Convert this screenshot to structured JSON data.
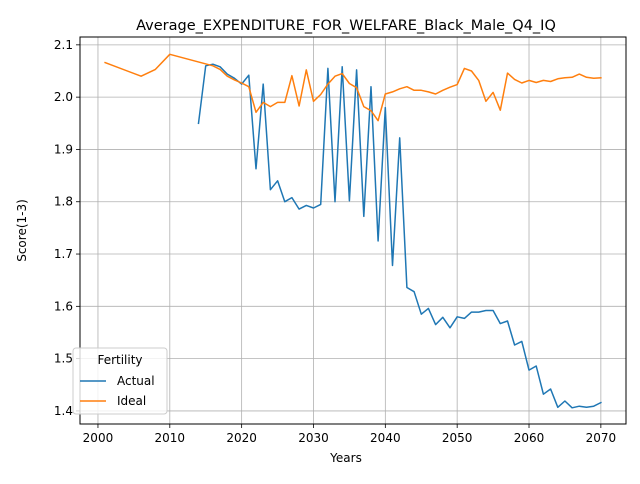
{
  "chart_data": {
    "type": "line",
    "title": "Average_EXPENDITURE_FOR_WELFARE_Black_Male_Q4_IQ",
    "xlabel": "Years",
    "ylabel": "Score(1-3)",
    "xlim": [
      1997.5,
      2073.5
    ],
    "ylim": [
      1.375,
      2.115
    ],
    "xticks": [
      2000,
      2010,
      2020,
      2030,
      2040,
      2050,
      2060,
      2070
    ],
    "yticks": [
      1.4,
      1.5,
      1.6,
      1.7,
      1.8,
      1.9,
      2.0,
      2.1
    ],
    "xtick_labels": [
      "2000",
      "2010",
      "2020",
      "2030",
      "2040",
      "2050",
      "2060",
      "2070"
    ],
    "ytick_labels": [
      "1.4",
      "1.5",
      "1.6",
      "1.7",
      "1.8",
      "1.9",
      "2.0",
      "2.1"
    ],
    "grid": true,
    "legend": {
      "title": "Fertility",
      "placement": "lower-left"
    },
    "series": [
      {
        "name": "Actual",
        "color": "#1f77b4",
        "x": [
          2014,
          2015,
          2016,
          2017,
          2018,
          2019,
          2020,
          2021,
          2022,
          2023,
          2024,
          2025,
          2026,
          2027,
          2028,
          2029,
          2030,
          2031,
          2032,
          2033,
          2034,
          2035,
          2036,
          2037,
          2038,
          2039,
          2040,
          2041,
          2042,
          2043,
          2044,
          2045,
          2046,
          2047,
          2048,
          2049,
          2050,
          2051,
          2052,
          2053,
          2054,
          2055,
          2056,
          2057,
          2058,
          2059,
          2060,
          2061,
          2062,
          2063,
          2064,
          2065,
          2066,
          2067,
          2068,
          2069,
          2070
        ],
        "y": [
          1.95,
          2.06,
          2.063,
          2.058,
          2.044,
          2.036,
          2.025,
          2.042,
          1.863,
          2.025,
          1.823,
          1.84,
          1.8,
          1.808,
          1.786,
          1.793,
          1.788,
          1.795,
          2.055,
          1.8,
          2.058,
          1.802,
          2.052,
          1.772,
          2.02,
          1.725,
          1.98,
          1.678,
          1.922,
          1.636,
          1.628,
          1.585,
          1.596,
          1.565,
          1.579,
          1.559,
          1.58,
          1.577,
          1.589,
          1.589,
          1.592,
          1.592,
          1.567,
          1.572,
          1.526,
          1.533,
          1.478,
          1.486,
          1.432,
          1.442,
          1.407,
          1.419,
          1.406,
          1.409,
          1.407,
          1.409,
          1.416
        ]
      },
      {
        "name": "Ideal",
        "color": "#ff7f0e",
        "x": [
          2001,
          2006,
          2008,
          2010,
          2016,
          2017,
          2018,
          2019,
          2020,
          2021,
          2022,
          2023,
          2024,
          2025,
          2026,
          2027,
          2028,
          2029,
          2030,
          2031,
          2032,
          2033,
          2034,
          2035,
          2036,
          2037,
          2038,
          2039,
          2040,
          2041,
          2042,
          2043,
          2044,
          2045,
          2046,
          2047,
          2048,
          2049,
          2050,
          2051,
          2052,
          2053,
          2054,
          2055,
          2056,
          2057,
          2058,
          2059,
          2060,
          2061,
          2062,
          2063,
          2064,
          2065,
          2066,
          2067,
          2068,
          2069,
          2070
        ],
        "y": [
          2.066,
          2.04,
          2.053,
          2.082,
          2.06,
          2.053,
          2.04,
          2.033,
          2.027,
          2.02,
          1.971,
          1.99,
          1.982,
          1.99,
          1.99,
          2.041,
          1.983,
          2.052,
          1.992,
          2.005,
          2.025,
          2.04,
          2.045,
          2.026,
          2.018,
          1.982,
          1.974,
          1.955,
          2.006,
          2.01,
          2.016,
          2.02,
          2.013,
          2.013,
          2.01,
          2.006,
          2.013,
          2.019,
          2.024,
          2.055,
          2.05,
          2.032,
          1.992,
          2.009,
          1.975,
          2.046,
          2.034,
          2.027,
          2.032,
          2.028,
          2.032,
          2.03,
          2.035,
          2.037,
          2.038,
          2.044,
          2.038,
          2.036,
          2.037
        ]
      }
    ]
  }
}
